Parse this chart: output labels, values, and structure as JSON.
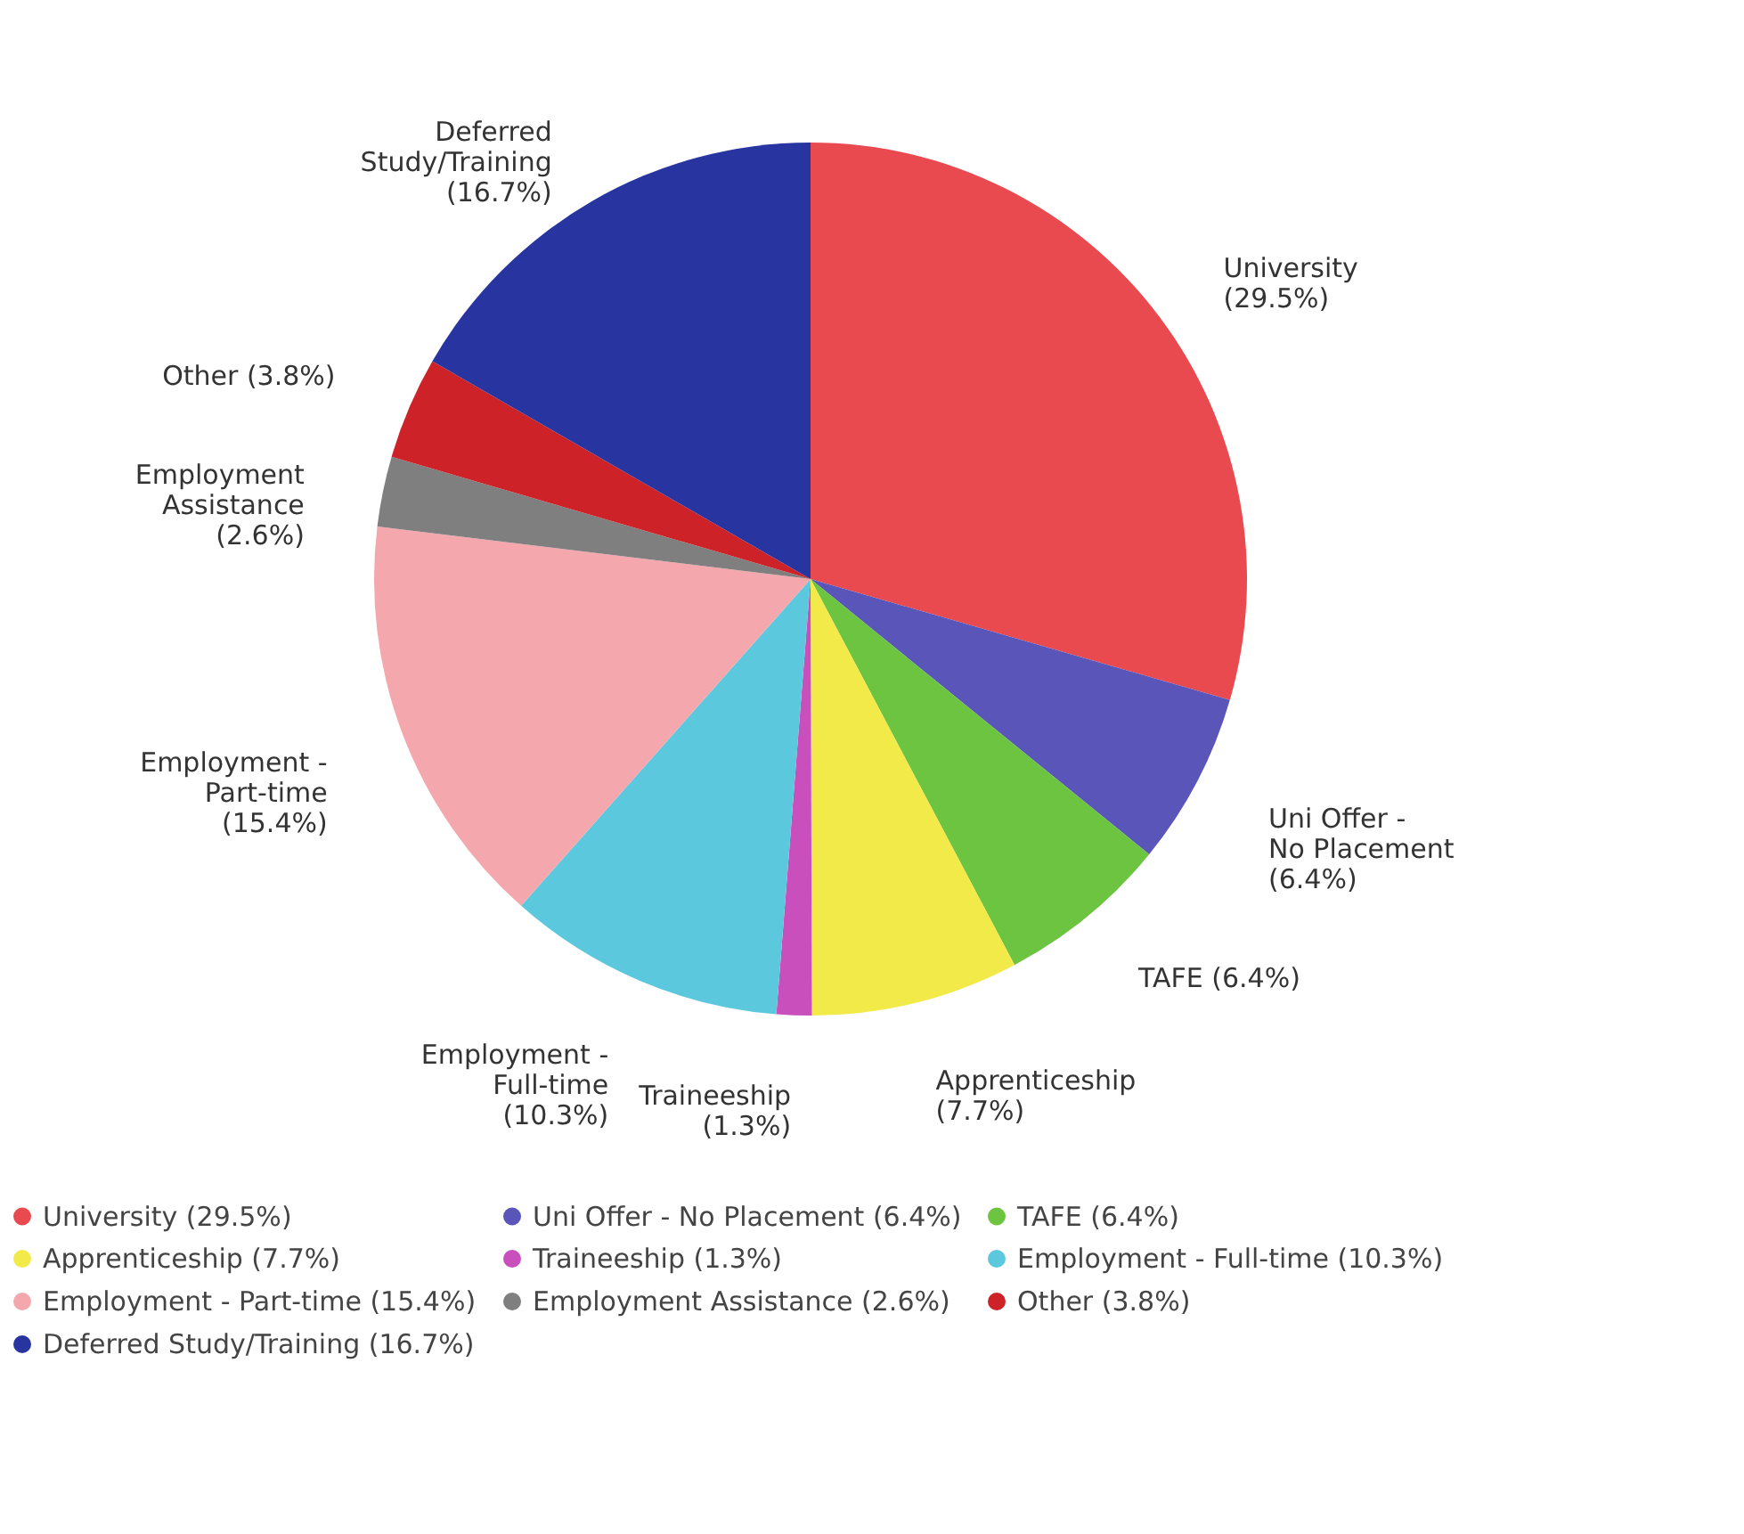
{
  "chart_data": {
    "type": "pie",
    "categories": [
      "University (29.5%)",
      "Uni Offer - No Placement (6.4%)",
      "TAFE (6.4%)",
      "Apprenticeship (7.7%)",
      "Traineeship (1.3%)",
      "Employment - Full-time (10.3%)",
      "Employment - Part-time (15.4%)",
      "Employment Assistance (2.6%)",
      "Other (3.8%)",
      "Deferred Study/Training (16.7%)"
    ],
    "values": [
      29.5,
      6.4,
      6.4,
      7.7,
      1.3,
      10.3,
      15.4,
      2.6,
      3.8,
      16.7
    ],
    "colors": [
      "#e84a4f",
      "#5a55b8",
      "#6cc441",
      "#f2ea48",
      "#c94fbd",
      "#5cc8de",
      "#f4a7ad",
      "#7f7f7f",
      "#cc2228",
      "#28349f"
    ],
    "legend": "bottom"
  }
}
